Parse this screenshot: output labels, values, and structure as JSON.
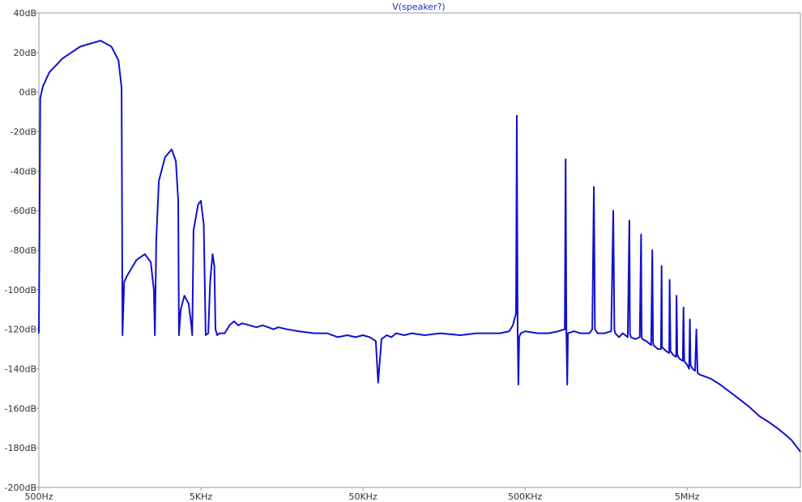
{
  "chart_data": {
    "type": "line",
    "title": "V(speaker?)",
    "xlabel": "",
    "ylabel": "",
    "x_scale": "log",
    "xlim": [
      500,
      25000000
    ],
    "ylim": [
      -200,
      40
    ],
    "grid": false,
    "x_ticks": [
      {
        "value": 500,
        "label": "500Hz"
      },
      {
        "value": 5000,
        "label": "5KHz"
      },
      {
        "value": 50000,
        "label": "50KHz"
      },
      {
        "value": 500000,
        "label": "500KHz"
      },
      {
        "value": 5000000,
        "label": "5MHz"
      }
    ],
    "y_ticks": [
      {
        "value": 40,
        "label": "40dB"
      },
      {
        "value": 20,
        "label": "20dB"
      },
      {
        "value": 0,
        "label": "0dB"
      },
      {
        "value": -20,
        "label": "-20dB"
      },
      {
        "value": -40,
        "label": "-40dB"
      },
      {
        "value": -60,
        "label": "-60dB"
      },
      {
        "value": -80,
        "label": "-80dB"
      },
      {
        "value": -100,
        "label": "-100dB"
      },
      {
        "value": -120,
        "label": "-120dB"
      },
      {
        "value": -140,
        "label": "-140dB"
      },
      {
        "value": -160,
        "label": "-160dB"
      },
      {
        "value": -180,
        "label": "-180dB"
      },
      {
        "value": -200,
        "label": "-200dB"
      }
    ],
    "series": [
      {
        "color": "#1111cc",
        "x": [
          500,
          510,
          530,
          580,
          700,
          900,
          1200,
          1400,
          1550,
          1620,
          1640,
          1680,
          1750,
          2000,
          2250,
          2450,
          2560,
          2600,
          2650,
          2750,
          3000,
          3300,
          3500,
          3620,
          3660,
          3750,
          3950,
          4200,
          4350,
          4420,
          4500,
          4800,
          5000,
          5200,
          5350,
          5550,
          5700,
          5900,
          6050,
          6150,
          6300,
          6500,
          7000,
          7500,
          8000,
          8500,
          9000,
          10000,
          11000,
          12000,
          13000,
          14000,
          15000,
          17000,
          20000,
          25000,
          30000,
          35000,
          40000,
          45000,
          50000,
          55000,
          60000,
          62000,
          65000,
          70000,
          75000,
          80000,
          90000,
          100000,
          120000,
          150000,
          200000,
          250000,
          300000,
          350000,
          400000,
          420000,
          440000,
          445000,
          450000,
          455000,
          460000,
          470000,
          500000,
          600000,
          700000,
          800000,
          880000,
          890000,
          900000,
          910000,
          920000,
          1000000,
          1100000,
          1250000,
          1300000,
          1330000,
          1350000,
          1400000,
          1550000,
          1700000,
          1750000,
          1780000,
          1800000,
          1900000,
          2000000,
          2150000,
          2200000,
          2220000,
          2250000,
          2400000,
          2550000,
          2600000,
          2620000,
          2650000,
          2800000,
          3000000,
          3050000,
          3080000,
          3100000,
          3300000,
          3450000,
          3480000,
          3500000,
          3700000,
          3880000,
          3900000,
          3950000,
          4100000,
          4280000,
          4300000,
          4350000,
          4500000,
          4700000,
          4750000,
          4800000,
          5000000,
          5150000,
          5200000,
          5250000,
          5400000,
          5600000,
          5700000,
          5800000,
          6000000,
          6500000,
          7000000,
          8000000,
          10000000,
          12000000,
          14000000,
          16000000,
          18000000,
          20000000,
          22000000,
          24000000,
          25000000
        ],
        "y": [
          -122,
          -3,
          3,
          10,
          17,
          23,
          26,
          23,
          16,
          2,
          -123,
          -96,
          -93,
          -85,
          -82,
          -86,
          -100,
          -123,
          -75,
          -45,
          -33,
          -29,
          -35,
          -55,
          -123,
          -110,
          -103,
          -107,
          -117,
          -123,
          -70,
          -57,
          -55,
          -67,
          -123,
          -122,
          -96,
          -82,
          -88,
          -120,
          -123,
          -122,
          -122,
          -118,
          -116,
          -118,
          -117,
          -118,
          -119,
          -118,
          -119,
          -120,
          -119,
          -120,
          -121,
          -122,
          -122,
          -124,
          -123,
          -124,
          -123,
          -124,
          -126,
          -147,
          -125,
          -123,
          -124,
          -122,
          -123,
          -122,
          -123,
          -122,
          -123,
          -122,
          -122,
          -122,
          -121,
          -118,
          -112,
          -12,
          -122,
          -148,
          -124,
          -122,
          -121,
          -122,
          -122,
          -121,
          -120,
          -34,
          -123,
          -148,
          -122,
          -121,
          -122,
          -122,
          -120,
          -48,
          -120,
          -122,
          -122,
          -121,
          -60,
          -120,
          -122,
          -124,
          -122,
          -124,
          -65,
          -122,
          -124,
          -125,
          -124,
          -72,
          -124,
          -125,
          -126,
          -128,
          -80,
          -126,
          -128,
          -130,
          -130,
          -88,
          -129,
          -131,
          -132,
          -95,
          -131,
          -133,
          -134,
          -103,
          -133,
          -135,
          -136,
          -109,
          -136,
          -138,
          -140,
          -115,
          -138,
          -140,
          -141,
          -120,
          -142,
          -143,
          -144,
          -145,
          -148,
          -154,
          -159,
          -164,
          -167,
          -170,
          -173,
          -176,
          -180,
          -182
        ]
      }
    ]
  }
}
